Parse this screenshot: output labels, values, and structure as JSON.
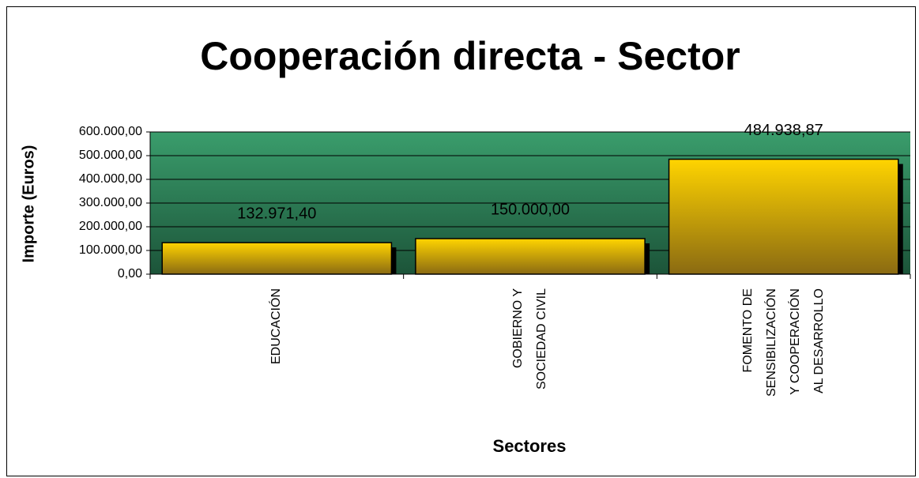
{
  "chart_data": {
    "type": "bar",
    "title": "Cooperación directa - Sector",
    "y_label": "Importe (Euros)",
    "x_label": "Sectores",
    "categories": [
      "EDUCACIÓN",
      "GOBIERNO Y\nSOCIEDAD CIVIL",
      "FOMENTO DE\nSENSIBILIZACIÓN\nY COOPERACIÓN\nAL DESARROLLO"
    ],
    "values": [
      132971.4,
      150000.0,
      484938.87
    ],
    "value_labels": [
      "132.971,40",
      "150.000,00",
      "484.938,87"
    ],
    "color": "#ffd200",
    "ylim": [
      0,
      600000
    ],
    "yticks": [
      {
        "value": 0,
        "label": "0,00"
      },
      {
        "value": 100000,
        "label": "100.000,00"
      },
      {
        "value": 200000,
        "label": "200.000,00"
      },
      {
        "value": 300000,
        "label": "300.000,00"
      },
      {
        "value": 400000,
        "label": "400.000,00"
      },
      {
        "value": 500000,
        "label": "500.000,00"
      },
      {
        "value": 600000,
        "label": "600.000,00"
      }
    ],
    "grid": true
  }
}
